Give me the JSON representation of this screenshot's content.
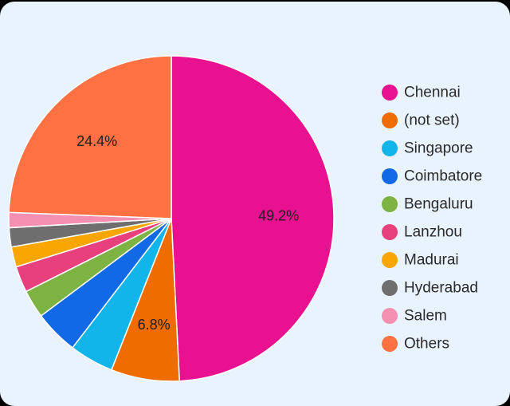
{
  "chart_data": {
    "type": "pie",
    "categories": [
      "Chennai",
      "(not set)",
      "Singapore",
      "Coimbatore",
      "Bengaluru",
      "Lanzhou",
      "Madurai",
      "Hyderabad",
      "Salem",
      "Others"
    ],
    "values": [
      49.2,
      6.8,
      4.4,
      4.4,
      2.8,
      2.6,
      2.0,
      1.9,
      1.5,
      24.4
    ],
    "colors": [
      "#e8118f",
      "#ef6c00",
      "#12b5ea",
      "#1169e6",
      "#7cb342",
      "#e83f7d",
      "#f9a602",
      "#6e6e6e",
      "#f48fb1",
      "#ff7043"
    ],
    "data_labels": [
      "49.2%",
      "6.8%",
      "",
      "",
      "",
      "",
      "",
      "",
      "",
      "24.4%"
    ],
    "legend_position": "right"
  }
}
